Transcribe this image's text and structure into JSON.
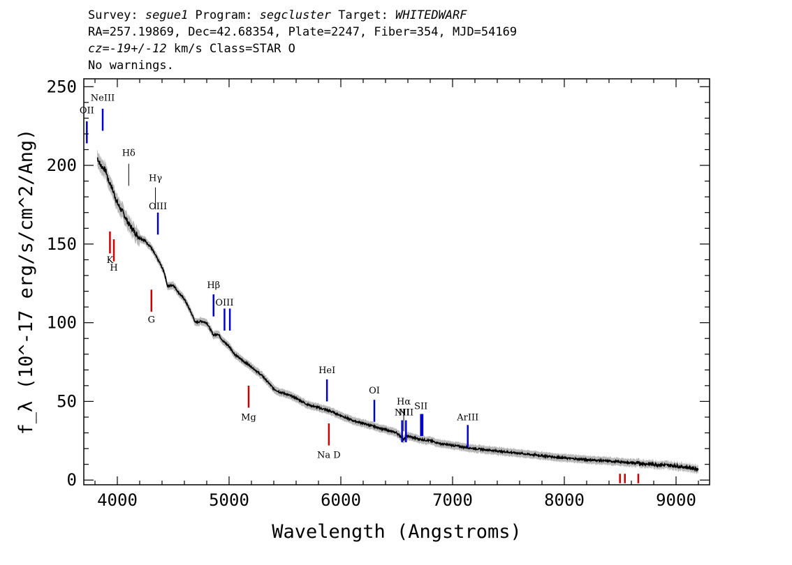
{
  "header": {
    "survey_label": "Survey: ",
    "survey": "segue1",
    "program_label": " Program: ",
    "program": "segcluster",
    "target_label": " Target: ",
    "target": "WHITEDWARF",
    "coords": "RA=257.19869, Dec=42.68354, Plate=2247, Fiber=354, MJD=54169",
    "cz_value": "cz=-19+/-12",
    "cz_rest": " km/s Class=STAR O",
    "warnings": "No warnings."
  },
  "chart_data": {
    "type": "line",
    "xlabel": "Wavelength (Angstroms)",
    "ylabel": "f_λ (10^-17 erg/s/cm^2/Ang)",
    "xlim": [
      3700,
      9300
    ],
    "ylim": [
      -3,
      255
    ],
    "x_ticks": [
      4000,
      5000,
      6000,
      7000,
      8000,
      9000
    ],
    "y_ticks": [
      0,
      50,
      100,
      150,
      200,
      250
    ],
    "x_tick_labels": [
      "4000",
      "5000",
      "6000",
      "7000",
      "8000",
      "9000"
    ],
    "y_tick_labels": [
      "0",
      "50",
      "100",
      "150",
      "200",
      "250"
    ],
    "grid": false,
    "series": [
      {
        "color": "#000000",
        "error_color": "#b8b8b8",
        "x": [
          3820,
          3850,
          3880,
          3900,
          3920,
          3940,
          3970,
          4000,
          4050,
          4100,
          4150,
          4200,
          4250,
          4300,
          4340,
          4380,
          4420,
          4450,
          4500,
          4550,
          4600,
          4650,
          4700,
          4750,
          4800,
          4861,
          4900,
          4950,
          5000,
          5050,
          5100,
          5200,
          5300,
          5400,
          5450,
          5500,
          5600,
          5700,
          5800,
          5900,
          6000,
          6100,
          6200,
          6300,
          6400,
          6500,
          6563,
          6600,
          6700,
          6800,
          6900,
          7000,
          7100,
          7200,
          7400,
          7600,
          7800,
          8000,
          8200,
          8400,
          8600,
          8800,
          9000,
          9100,
          9200
        ],
        "y": [
          205,
          200,
          198,
          196,
          190,
          188,
          182,
          176,
          170,
          163,
          158,
          154,
          152,
          148,
          143,
          138,
          132,
          123,
          124,
          119,
          115,
          108,
          100,
          101,
          100,
          92,
          93,
          88,
          85,
          80,
          77,
          72,
          66,
          58,
          56,
          55,
          52,
          48,
          46,
          44,
          41,
          38,
          36,
          34,
          32,
          30,
          26,
          28,
          26,
          25,
          23,
          22,
          21,
          20,
          18.5,
          17,
          15.5,
          14,
          13,
          12,
          11,
          10,
          9,
          8,
          7
        ]
      }
    ],
    "annotations": [
      {
        "label": "OII",
        "x": 3727,
        "color": "#0000cc",
        "y_top": 228,
        "y_bottom": 214,
        "label_y": 233
      },
      {
        "label": "NeIII",
        "x": 3869,
        "color": "#0000cc",
        "y_top": 236,
        "y_bottom": 222,
        "label_y": 241
      },
      {
        "label": "Hδ",
        "x": 4102,
        "color": "#000000",
        "y_top": 201,
        "y_bottom": 187,
        "label_y": 206
      },
      {
        "label": "Hγ",
        "x": 4341,
        "color": "#000000",
        "y_top": 186,
        "y_bottom": 172,
        "label_y": 190
      },
      {
        "label": "OIII",
        "x": 4363,
        "color": "#0000cc",
        "y_top": 170,
        "y_bottom": 156,
        "label_y": 172
      },
      {
        "label": "K",
        "x": 3934,
        "color": "#cc0000",
        "y_top": 158,
        "y_bottom": 144,
        "label_y": 138
      },
      {
        "label": "H",
        "x": 3969,
        "color": "#cc0000",
        "y_top": 153,
        "y_bottom": 139,
        "label_y": 133
      },
      {
        "label": "G",
        "x": 4305,
        "color": "#cc0000",
        "y_top": 121,
        "y_bottom": 107,
        "label_y": 100
      },
      {
        "label": "Hβ",
        "x": 4861,
        "color": "#0000cc",
        "y_top": 118,
        "y_bottom": 104,
        "label_y": 122
      },
      {
        "label": "OIII",
        "x": 4959,
        "color": "#0000cc",
        "y_top": 109,
        "y_bottom": 95,
        "label_y": 111
      },
      {
        "label": "",
        "x": 5007,
        "color": "#0000cc",
        "y_top": 109,
        "y_bottom": 95,
        "label_y": 0
      },
      {
        "label": "Mg",
        "x": 5175,
        "color": "#cc0000",
        "y_top": 60,
        "y_bottom": 46,
        "label_y": 38
      },
      {
        "label": "HeI",
        "x": 5876,
        "color": "#0000cc",
        "y_top": 64,
        "y_bottom": 50,
        "label_y": 68
      },
      {
        "label": "Na D",
        "x": 5893,
        "color": "#cc0000",
        "y_top": 36,
        "y_bottom": 22,
        "label_y": 14
      },
      {
        "label": "OI",
        "x": 6300,
        "color": "#0000cc",
        "y_top": 51,
        "y_bottom": 37,
        "label_y": 55
      },
      {
        "label": "NII",
        "x": 6548,
        "color": "#0000cc",
        "y_top": 38,
        "y_bottom": 24,
        "label_y": 41
      },
      {
        "label": "Hα",
        "x": 6563,
        "color": "#000000",
        "y_top": 45,
        "y_bottom": 31,
        "label_y": 48
      },
      {
        "label": "NII",
        "x": 6583,
        "color": "#0000cc",
        "y_top": 38,
        "y_bottom": 24,
        "label_y": 41
      },
      {
        "label": "SII",
        "x": 6717,
        "color": "#0000cc",
        "y_top": 42,
        "y_bottom": 28,
        "label_y": 45
      },
      {
        "label": "",
        "x": 6731,
        "color": "#0000cc",
        "y_top": 42,
        "y_bottom": 28,
        "label_y": 0
      },
      {
        "label": "ArIII",
        "x": 7136,
        "color": "#0000cc",
        "y_top": 35,
        "y_bottom": 21,
        "label_y": 38
      },
      {
        "label": "",
        "x": 8498,
        "color": "#cc0000",
        "y_top": 4,
        "y_bottom": -2,
        "label_y": 0
      },
      {
        "label": "",
        "x": 8542,
        "color": "#cc0000",
        "y_top": 4,
        "y_bottom": -2,
        "label_y": 0
      },
      {
        "label": "",
        "x": 8662,
        "color": "#cc0000",
        "y_top": 4,
        "y_bottom": -2,
        "label_y": 0
      }
    ]
  }
}
